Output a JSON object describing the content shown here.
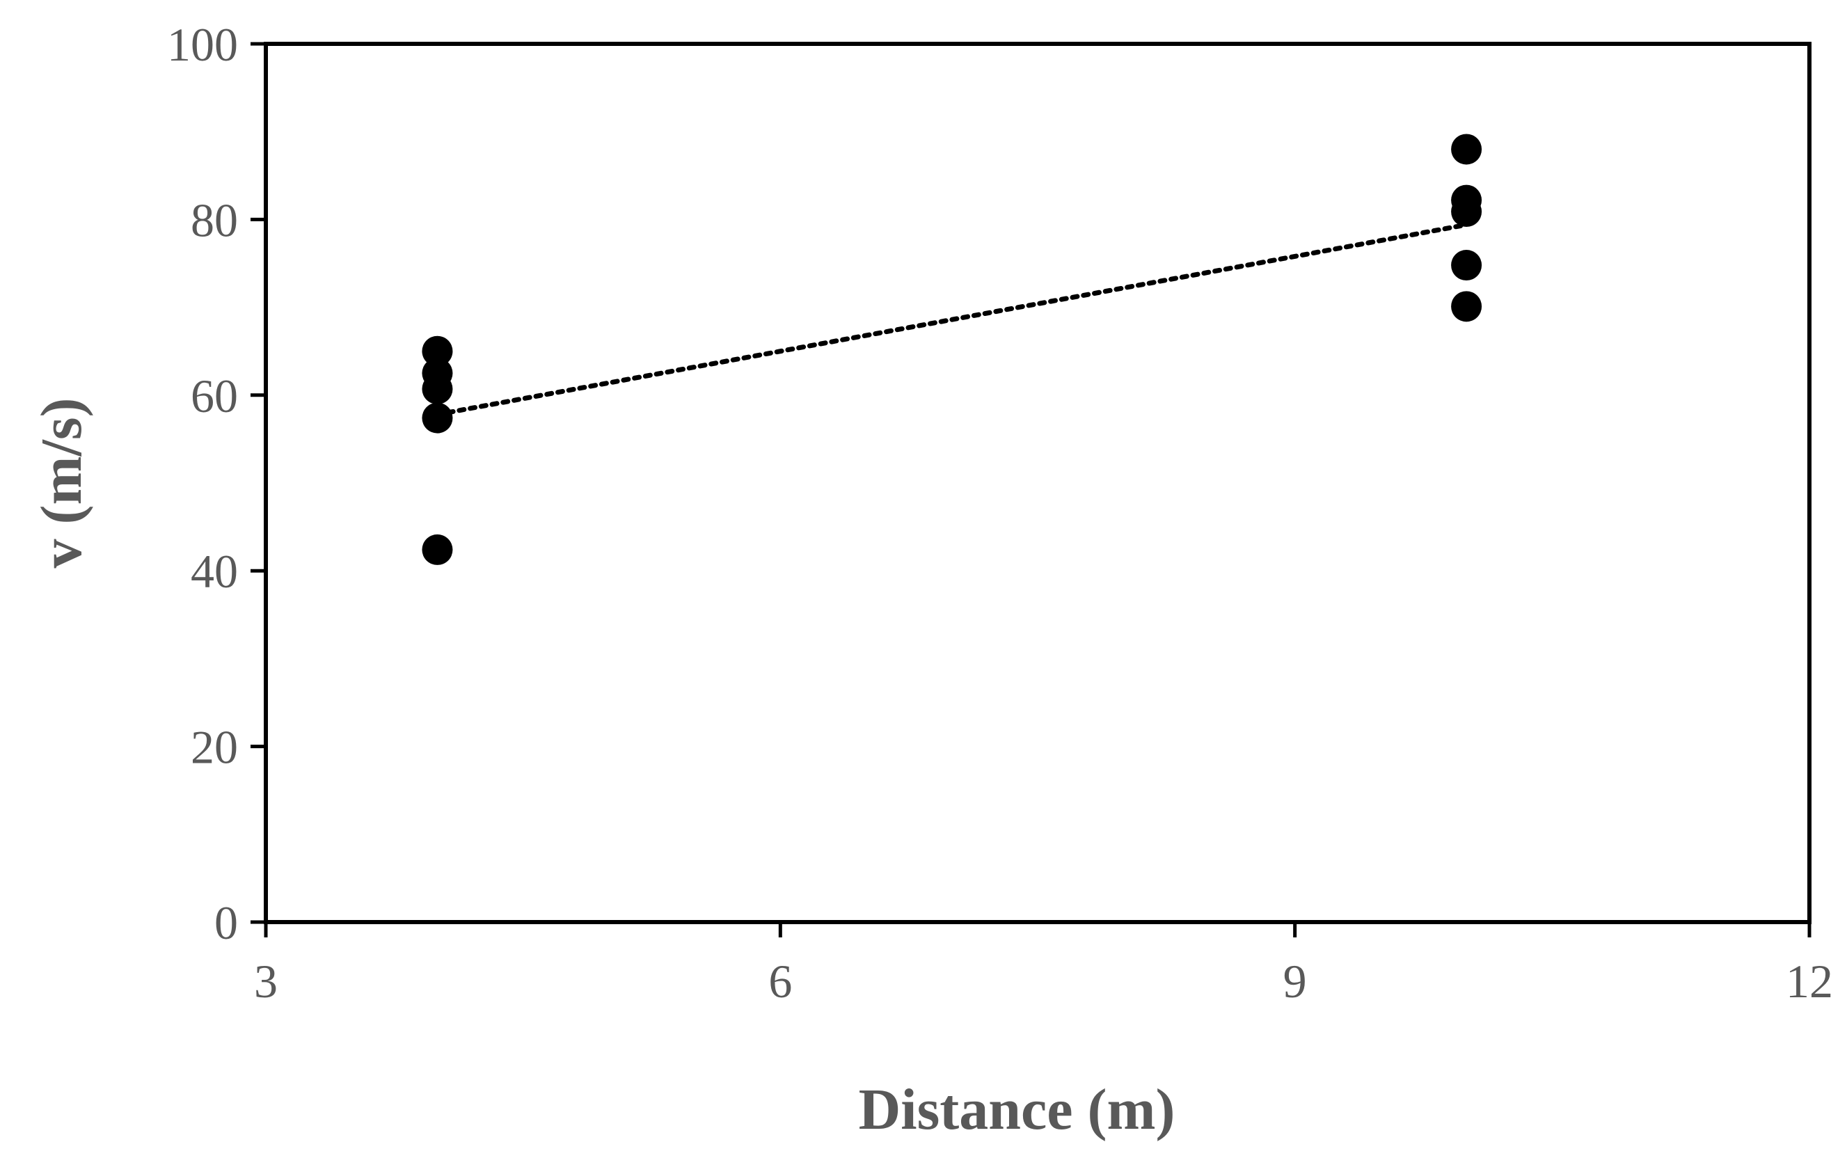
{
  "chart_data": {
    "type": "scatter",
    "title": "",
    "xlabel": "Distance (m)",
    "ylabel": "v  (m/s)",
    "xlim": [
      3,
      12
    ],
    "ylim": [
      0,
      100
    ],
    "xticks": [
      3,
      6,
      9,
      12
    ],
    "yticks": [
      0,
      20,
      40,
      60,
      80,
      100
    ],
    "grid": false,
    "legend": "none",
    "colors": {
      "marker": "#000000",
      "trendline": "#000000",
      "axis": "#000000",
      "label": "#595959"
    },
    "series": [
      {
        "points": [
          {
            "x": 4,
            "y": 65
          },
          {
            "x": 4,
            "y": 62.5
          },
          {
            "x": 4,
            "y": 60.7
          },
          {
            "x": 4,
            "y": 57.4
          },
          {
            "x": 4,
            "y": 42.4
          },
          {
            "x": 10,
            "y": 88
          },
          {
            "x": 10,
            "y": 82.2
          },
          {
            "x": 10,
            "y": 80.9
          },
          {
            "x": 10,
            "y": 74.8
          },
          {
            "x": 10,
            "y": 70.1
          }
        ]
      }
    ],
    "trendline": {
      "style": "dotted",
      "x": [
        4,
        10
      ],
      "y": [
        57.8,
        79.4
      ]
    }
  }
}
